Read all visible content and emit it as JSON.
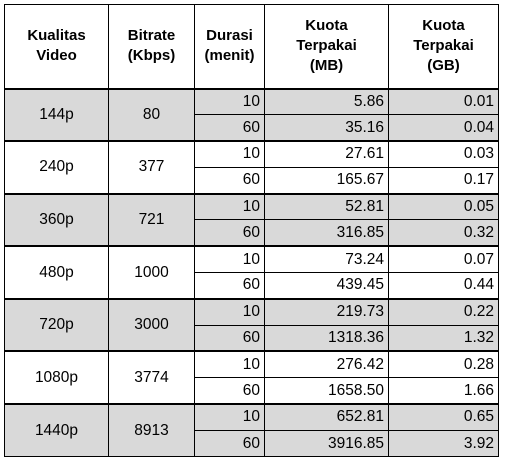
{
  "headers": {
    "quality": [
      "Kualitas",
      "Video"
    ],
    "bitrate": [
      "Bitrate",
      "(Kbps)"
    ],
    "duration": [
      "Durasi",
      "(menit)"
    ],
    "quota_mb": [
      "Kuota",
      "Terpakai",
      "(MB)"
    ],
    "quota_gb": [
      "Kuota",
      "Terpakai",
      "(GB)"
    ]
  },
  "groups": [
    {
      "quality": "144p",
      "bitrate": "80",
      "shaded": true,
      "rows": [
        {
          "duration": "10",
          "mb": "5.86",
          "gb": "0.01"
        },
        {
          "duration": "60",
          "mb": "35.16",
          "gb": "0.04"
        }
      ]
    },
    {
      "quality": "240p",
      "bitrate": "377",
      "shaded": false,
      "rows": [
        {
          "duration": "10",
          "mb": "27.61",
          "gb": "0.03"
        },
        {
          "duration": "60",
          "mb": "165.67",
          "gb": "0.17"
        }
      ]
    },
    {
      "quality": "360p",
      "bitrate": "721",
      "shaded": true,
      "rows": [
        {
          "duration": "10",
          "mb": "52.81",
          "gb": "0.05"
        },
        {
          "duration": "60",
          "mb": "316.85",
          "gb": "0.32"
        }
      ]
    },
    {
      "quality": "480p",
      "bitrate": "1000",
      "shaded": false,
      "rows": [
        {
          "duration": "10",
          "mb": "73.24",
          "gb": "0.07"
        },
        {
          "duration": "60",
          "mb": "439.45",
          "gb": "0.44"
        }
      ]
    },
    {
      "quality": "720p",
      "bitrate": "3000",
      "shaded": true,
      "rows": [
        {
          "duration": "10",
          "mb": "219.73",
          "gb": "0.22"
        },
        {
          "duration": "60",
          "mb": "1318.36",
          "gb": "1.32"
        }
      ]
    },
    {
      "quality": "1080p",
      "bitrate": "3774",
      "shaded": false,
      "rows": [
        {
          "duration": "10",
          "mb": "276.42",
          "gb": "0.28"
        },
        {
          "duration": "60",
          "mb": "1658.50",
          "gb": "1.66"
        }
      ]
    },
    {
      "quality": "1440p",
      "bitrate": "8913",
      "shaded": true,
      "rows": [
        {
          "duration": "10",
          "mb": "652.81",
          "gb": "0.65"
        },
        {
          "duration": "60",
          "mb": "3916.85",
          "gb": "3.92"
        }
      ]
    }
  ]
}
